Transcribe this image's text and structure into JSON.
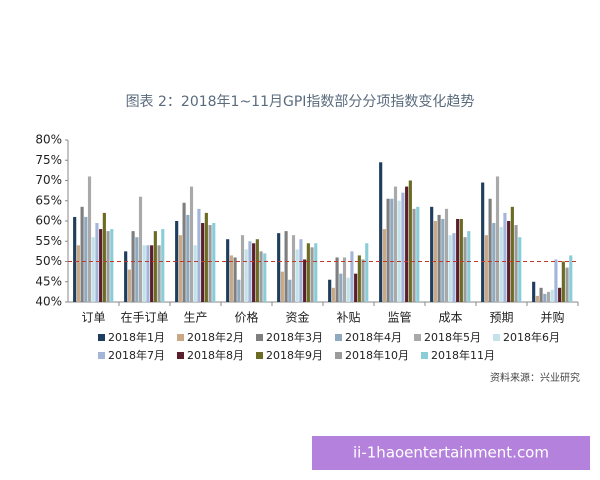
{
  "chart_data": {
    "type": "bar",
    "title": "图表 2：2018年1~11月GPI指数部分分项指数变化趋势",
    "categories": [
      "订单",
      "在手订单",
      "生产",
      "价格",
      "资金",
      "补贴",
      "监管",
      "成本",
      "预期",
      "并购"
    ],
    "series": [
      {
        "name": "2018年1月",
        "color": "#1f3d5c",
        "values": [
          61,
          52.5,
          60,
          55.5,
          57,
          45.5,
          74.5,
          63.5,
          69.5,
          45
        ]
      },
      {
        "name": "2018年2月",
        "color": "#c9a886",
        "values": [
          54,
          48,
          56.5,
          51.5,
          47.5,
          43.5,
          58,
          60,
          56.5,
          41.5
        ]
      },
      {
        "name": "2018年3月",
        "color": "#7f7f7f",
        "values": [
          63.5,
          57.5,
          64.5,
          51,
          57.5,
          51,
          65.5,
          61.5,
          65.5,
          43.5
        ]
      },
      {
        "name": "2018年4月",
        "color": "#8fa9bf",
        "values": [
          61,
          56,
          61.5,
          45.5,
          45.5,
          47,
          65.5,
          60.5,
          59.5,
          42
        ]
      },
      {
        "name": "2018年5月",
        "color": "#a9a9a9",
        "values": [
          71,
          66,
          68.5,
          56.5,
          56.5,
          51,
          68.5,
          63,
          71,
          42.5
        ]
      },
      {
        "name": "2018年6月",
        "color": "#c3e2ea",
        "values": [
          56,
          54,
          54,
          53,
          53,
          46,
          65,
          56.5,
          58.5,
          43
        ]
      },
      {
        "name": "2018年7月",
        "color": "#a3b6da",
        "values": [
          59.5,
          54,
          63,
          55,
          55.5,
          52.5,
          67,
          57,
          62,
          50.5
        ]
      },
      {
        "name": "2018年8月",
        "color": "#5b1f2b",
        "values": [
          58,
          54,
          59.5,
          54.5,
          50.5,
          47,
          68.5,
          60.5,
          60,
          43.5
        ]
      },
      {
        "name": "2018年9月",
        "color": "#6b6b24",
        "values": [
          62,
          57.5,
          62,
          55.5,
          54.5,
          51.5,
          70,
          60.5,
          63.5,
          50
        ]
      },
      {
        "name": "2018年10月",
        "color": "#9b9b9b",
        "values": [
          57.5,
          54,
          59,
          52.5,
          53.5,
          50.5,
          63,
          56,
          59,
          48.5
        ]
      },
      {
        "name": "2018年11月",
        "color": "#8acdd8",
        "values": [
          58,
          58,
          59.5,
          52,
          54.5,
          54.5,
          63.5,
          57.5,
          56,
          51.5
        ]
      }
    ],
    "ylim": [
      40,
      80
    ],
    "yticks": [
      {
        "value": 40,
        "label": "40%"
      },
      {
        "value": 45,
        "label": "45%"
      },
      {
        "value": 50,
        "label": "50%"
      },
      {
        "value": 55,
        "label": "55%"
      },
      {
        "value": 60,
        "label": "60%"
      },
      {
        "value": 65,
        "label": "65%"
      },
      {
        "value": 70,
        "label": "70%"
      },
      {
        "value": 75,
        "label": "75%"
      },
      {
        "value": 80,
        "label": "80%"
      }
    ],
    "reference_line": 50,
    "source": "资料来源：兴业研究",
    "watermark": "ii-1haoentertainment.com"
  }
}
